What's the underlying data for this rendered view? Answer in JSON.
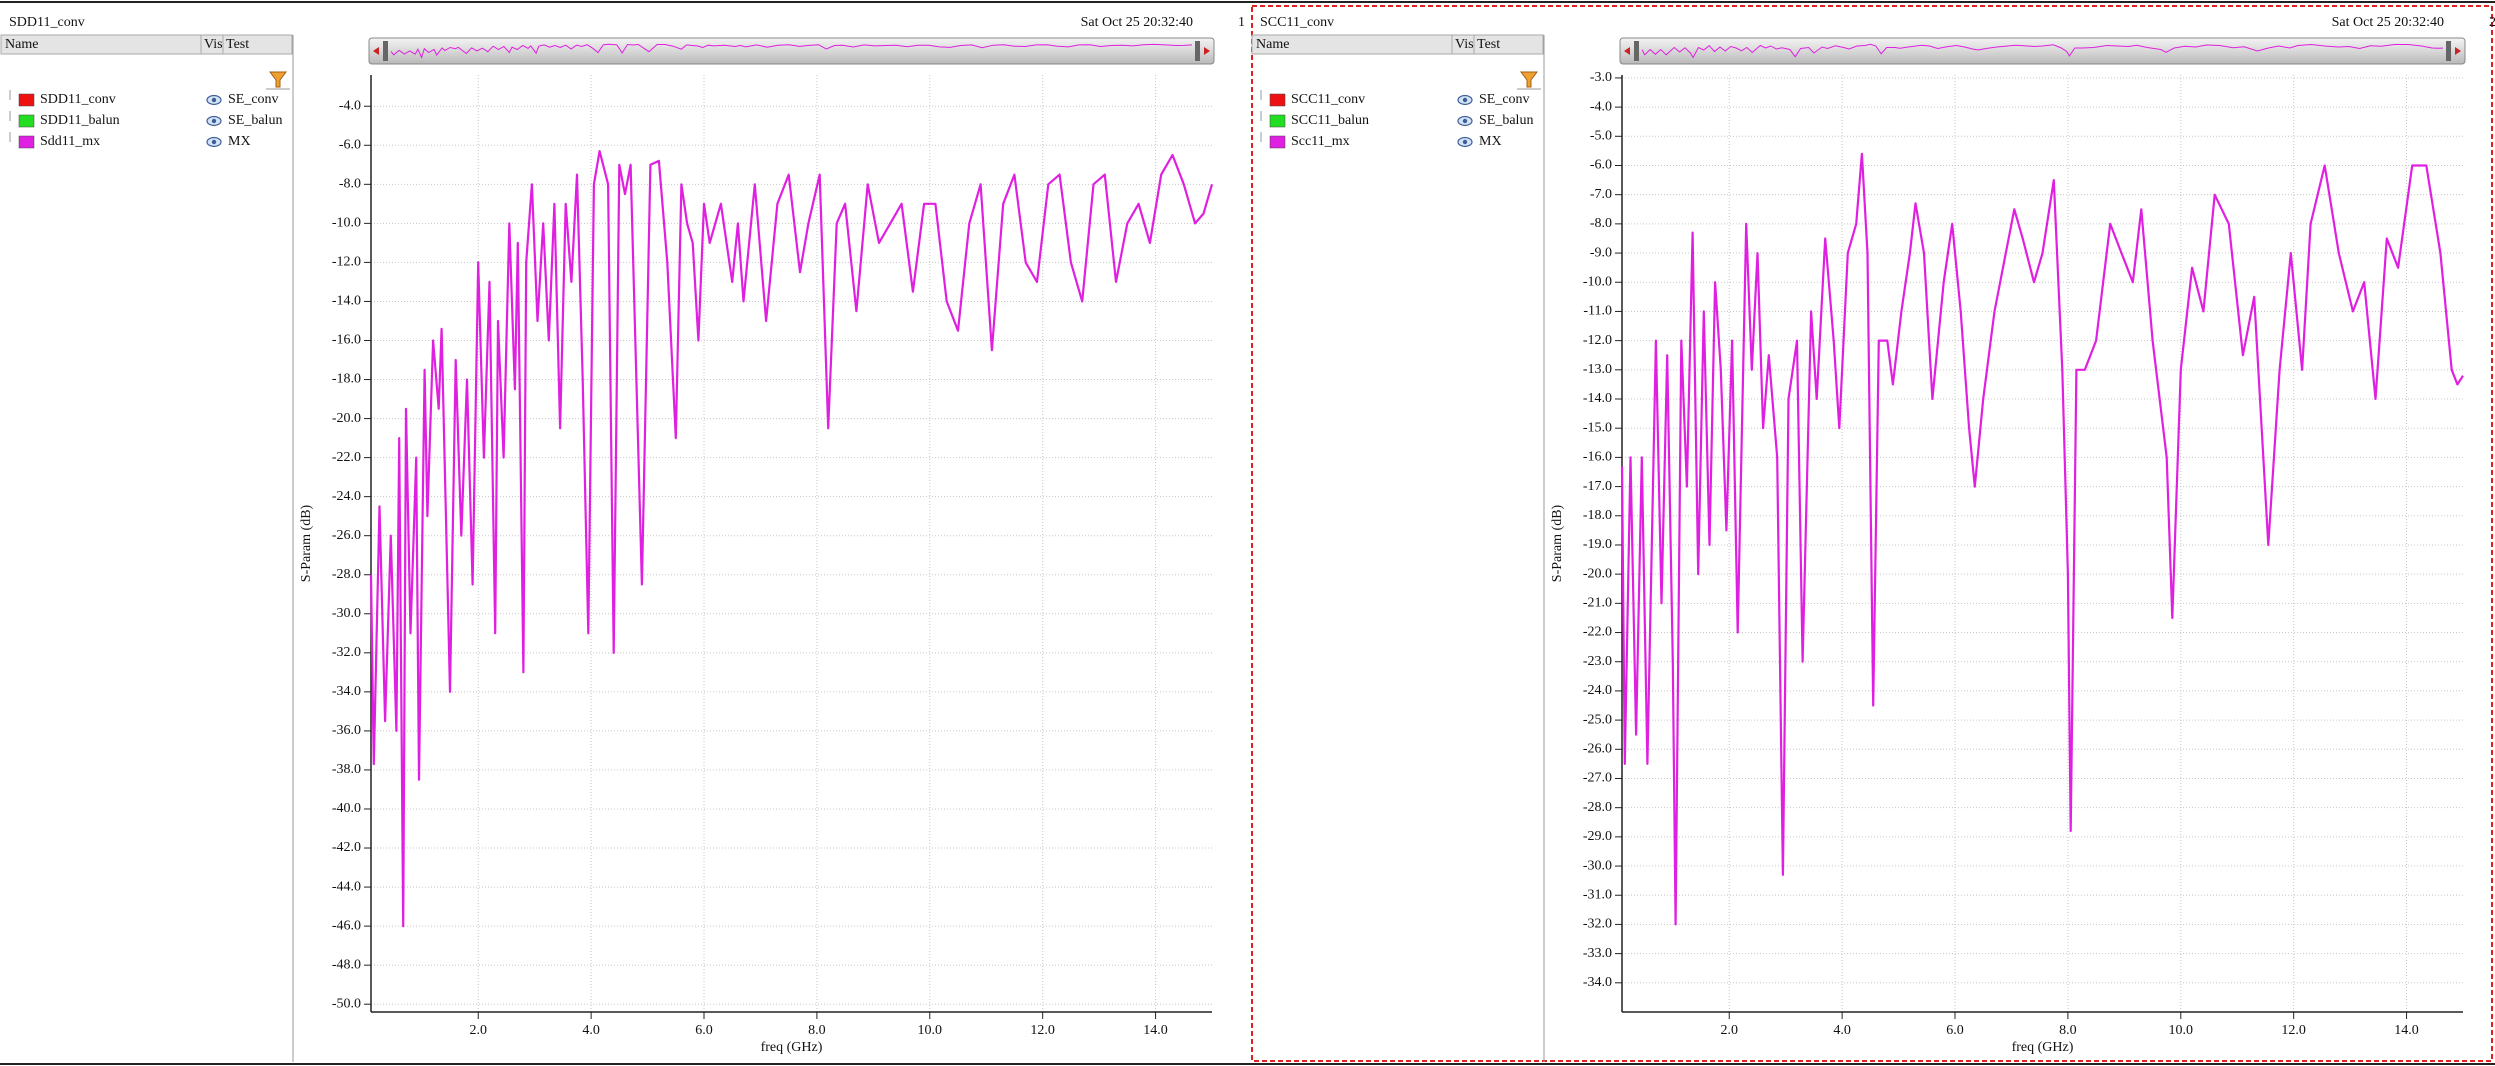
{
  "panels": [
    {
      "title": "SDD11_conv",
      "timestamp": "Sat Oct 25 20:32:40",
      "index": "1",
      "columns": [
        "Name",
        "Vis",
        "Test"
      ]
    },
    {
      "title": "SCC11_conv",
      "timestamp": "Sat Oct 25 20:32:40",
      "index": "2",
      "columns": [
        "Name",
        "Vis",
        "Test"
      ]
    }
  ],
  "chart_data": [
    {
      "type": "line",
      "xlabel": "freq (GHz)",
      "ylabel": "S-Param (dB)",
      "grid": true,
      "xlim": [
        0.1,
        15.0
      ],
      "ylim": [
        -50.4,
        -2.4
      ],
      "xticks": [
        {
          "value": 2,
          "label": "2.0"
        },
        {
          "value": 4,
          "label": "4.0"
        },
        {
          "value": 6,
          "label": "6.0"
        },
        {
          "value": 8,
          "label": "8.0"
        },
        {
          "value": 10,
          "label": "10.0"
        },
        {
          "value": 12,
          "label": "12.0"
        },
        {
          "value": 14,
          "label": "14.0"
        }
      ],
      "yticks": [
        {
          "value": -4,
          "label": "-4.0"
        },
        {
          "value": -6,
          "label": "-6.0"
        },
        {
          "value": -8,
          "label": "-8.0"
        },
        {
          "value": -10,
          "label": "-10.0"
        },
        {
          "value": -12,
          "label": "-12.0"
        },
        {
          "value": -14,
          "label": "-14.0"
        },
        {
          "value": -16,
          "label": "-16.0"
        },
        {
          "value": -18,
          "label": "-18.0"
        },
        {
          "value": -20,
          "label": "-20.0"
        },
        {
          "value": -22,
          "label": "-22.0"
        },
        {
          "value": -24,
          "label": "-24.0"
        },
        {
          "value": -26,
          "label": "-26.0"
        },
        {
          "value": -28,
          "label": "-28.0"
        },
        {
          "value": -30,
          "label": "-30.0"
        },
        {
          "value": -32,
          "label": "-32.0"
        },
        {
          "value": -34,
          "label": "-34.0"
        },
        {
          "value": -36,
          "label": "-36.0"
        },
        {
          "value": -38,
          "label": "-38.0"
        },
        {
          "value": -40,
          "label": "-40.0"
        },
        {
          "value": -42,
          "label": "-42.0"
        },
        {
          "value": -44,
          "label": "-44.0"
        },
        {
          "value": -46,
          "label": "-46.0"
        },
        {
          "value": -48,
          "label": "-48.0"
        },
        {
          "value": -50,
          "label": "-50.0"
        }
      ],
      "series": [
        {
          "name": "SDD11_conv",
          "color": "#ee1111",
          "test": "SE_conv"
        },
        {
          "name": "SDD11_balun",
          "color": "#22dd22",
          "test": "SE_balun"
        },
        {
          "name": "Sdd11_mx",
          "color": "#e020e0",
          "test": "MX",
          "x": [
            0.1,
            0.15,
            0.25,
            0.35,
            0.45,
            0.55,
            0.6,
            0.67,
            0.72,
            0.8,
            0.9,
            0.95,
            1.05,
            1.1,
            1.2,
            1.3,
            1.35,
            1.5,
            1.6,
            1.7,
            1.8,
            1.9,
            2.0,
            2.1,
            2.2,
            2.3,
            2.35,
            2.45,
            2.55,
            2.65,
            2.7,
            2.8,
            2.85,
            2.95,
            3.05,
            3.15,
            3.25,
            3.35,
            3.45,
            3.55,
            3.65,
            3.75,
            3.85,
            3.95,
            4.05,
            4.15,
            4.3,
            4.4,
            4.5,
            4.6,
            4.7,
            4.9,
            5.05,
            5.2,
            5.35,
            5.5,
            5.6,
            5.7,
            5.8,
            5.9,
            6.0,
            6.1,
            6.3,
            6.5,
            6.6,
            6.7,
            6.9,
            7.1,
            7.3,
            7.5,
            7.7,
            7.85,
            8.05,
            8.2,
            8.35,
            8.5,
            8.7,
            8.9,
            9.1,
            9.3,
            9.5,
            9.7,
            9.9,
            10.1,
            10.3,
            10.5,
            10.7,
            10.9,
            11.1,
            11.3,
            11.5,
            11.7,
            11.9,
            12.1,
            12.3,
            12.5,
            12.7,
            12.9,
            13.1,
            13.3,
            13.5,
            13.7,
            13.9,
            14.1,
            14.3,
            14.5,
            14.7,
            14.85,
            15.0
          ],
          "values": [
            -28,
            -37.7,
            -24.5,
            -35.5,
            -26,
            -36,
            -21,
            -46,
            -19.5,
            -31,
            -22,
            -38.5,
            -17.5,
            -25,
            -16,
            -19.5,
            -15.4,
            -34,
            -17,
            -26,
            -18,
            -28.5,
            -12,
            -22,
            -13,
            -31,
            -15,
            -22,
            -10,
            -18.5,
            -11,
            -33,
            -12,
            -8,
            -15,
            -10,
            -16,
            -9,
            -20.5,
            -9,
            -13,
            -7.5,
            -18,
            -31,
            -8,
            -6.3,
            -8,
            -32,
            -7,
            -8.5,
            -7,
            -28.5,
            -7,
            -6.8,
            -12,
            -21,
            -8,
            -10,
            -11,
            -16,
            -9,
            -11,
            -9,
            -13,
            -10,
            -14,
            -8,
            -15,
            -9,
            -7.5,
            -12.5,
            -10,
            -7.5,
            -20.5,
            -10,
            -9,
            -14.5,
            -8,
            -11,
            -10,
            -9,
            -13.5,
            -9,
            -9,
            -14,
            -15.5,
            -10,
            -8,
            -16.5,
            -9,
            -7.5,
            -12,
            -13,
            -8,
            -7.5,
            -12,
            -14,
            -8,
            -7.5,
            -13,
            -10,
            -9,
            -11,
            -7.5,
            -6.5,
            -8,
            -10,
            -9.5,
            -8
          ]
        }
      ]
    },
    {
      "type": "line",
      "xlabel": "freq (GHz)",
      "ylabel": "S-Param (dB)",
      "grid": true,
      "xlim": [
        0.1,
        15.0
      ],
      "ylim": [
        -35.0,
        -2.9
      ],
      "xticks": [
        {
          "value": 2,
          "label": "2.0"
        },
        {
          "value": 4,
          "label": "4.0"
        },
        {
          "value": 6,
          "label": "6.0"
        },
        {
          "value": 8,
          "label": "8.0"
        },
        {
          "value": 10,
          "label": "10.0"
        },
        {
          "value": 12,
          "label": "12.0"
        },
        {
          "value": 14,
          "label": "14.0"
        }
      ],
      "yticks": [
        {
          "value": -3,
          "label": "-3.0"
        },
        {
          "value": -4,
          "label": "-4.0"
        },
        {
          "value": -5,
          "label": "-5.0"
        },
        {
          "value": -6,
          "label": "-6.0"
        },
        {
          "value": -7,
          "label": "-7.0"
        },
        {
          "value": -8,
          "label": "-8.0"
        },
        {
          "value": -9,
          "label": "-9.0"
        },
        {
          "value": -10,
          "label": "-10.0"
        },
        {
          "value": -11,
          "label": "-11.0"
        },
        {
          "value": -12,
          "label": "-12.0"
        },
        {
          "value": -13,
          "label": "-13.0"
        },
        {
          "value": -14,
          "label": "-14.0"
        },
        {
          "value": -15,
          "label": "-15.0"
        },
        {
          "value": -16,
          "label": "-16.0"
        },
        {
          "value": -17,
          "label": "-17.0"
        },
        {
          "value": -18,
          "label": "-18.0"
        },
        {
          "value": -19,
          "label": "-19.0"
        },
        {
          "value": -20,
          "label": "-20.0"
        },
        {
          "value": -21,
          "label": "-21.0"
        },
        {
          "value": -22,
          "label": "-22.0"
        },
        {
          "value": -23,
          "label": "-23.0"
        },
        {
          "value": -24,
          "label": "-24.0"
        },
        {
          "value": -25,
          "label": "-25.0"
        },
        {
          "value": -26,
          "label": "-26.0"
        },
        {
          "value": -27,
          "label": "-27.0"
        },
        {
          "value": -28,
          "label": "-28.0"
        },
        {
          "value": -29,
          "label": "-29.0"
        },
        {
          "value": -30,
          "label": "-30.0"
        },
        {
          "value": -31,
          "label": "-31.0"
        },
        {
          "value": -32,
          "label": "-32.0"
        },
        {
          "value": -33,
          "label": "-33.0"
        },
        {
          "value": -34,
          "label": "-34.0"
        }
      ],
      "series": [
        {
          "name": "SCC11_conv",
          "color": "#ee1111",
          "test": "SE_conv"
        },
        {
          "name": "SCC11_balun",
          "color": "#22dd22",
          "test": "SE_balun"
        },
        {
          "name": "Scc11_mx",
          "color": "#e020e0",
          "test": "MX",
          "x": [
            0.1,
            0.15,
            0.25,
            0.35,
            0.45,
            0.55,
            0.7,
            0.8,
            0.9,
            1.0,
            1.05,
            1.15,
            1.25,
            1.35,
            1.45,
            1.55,
            1.65,
            1.75,
            1.85,
            1.95,
            2.05,
            2.15,
            2.3,
            2.4,
            2.5,
            2.6,
            2.7,
            2.85,
            2.95,
            3.05,
            3.2,
            3.3,
            3.45,
            3.55,
            3.7,
            3.85,
            3.95,
            4.1,
            4.25,
            4.35,
            4.45,
            4.55,
            4.65,
            4.8,
            4.9,
            5.05,
            5.2,
            5.3,
            5.45,
            5.6,
            5.8,
            5.95,
            6.1,
            6.25,
            6.35,
            6.5,
            6.7,
            6.9,
            7.05,
            7.2,
            7.4,
            7.55,
            7.75,
            7.9,
            8.0,
            8.05,
            8.15,
            8.3,
            8.5,
            8.75,
            8.95,
            9.15,
            9.3,
            9.5,
            9.75,
            9.85,
            10.0,
            10.2,
            10.4,
            10.6,
            10.85,
            11.1,
            11.3,
            11.55,
            11.75,
            11.95,
            12.15,
            12.3,
            12.55,
            12.8,
            13.05,
            13.25,
            13.45,
            13.65,
            13.85,
            14.1,
            14.35,
            14.6,
            14.8,
            14.9,
            15.0
          ],
          "values": [
            -16.3,
            -26.5,
            -16,
            -25.5,
            -16,
            -26.5,
            -12,
            -21,
            -12.5,
            -23,
            -32,
            -12,
            -17,
            -8.3,
            -20,
            -11,
            -19,
            -10,
            -13,
            -18.5,
            -12,
            -22,
            -8,
            -13,
            -9,
            -15,
            -12.5,
            -16,
            -30.3,
            -14,
            -12,
            -23,
            -11,
            -14,
            -8.5,
            -12,
            -15,
            -9,
            -8,
            -5.6,
            -9,
            -24.5,
            -12,
            -12,
            -13.5,
            -11,
            -9,
            -7.3,
            -9,
            -14,
            -10,
            -8,
            -11,
            -15,
            -17,
            -14,
            -11,
            -9,
            -7.5,
            -8.5,
            -10,
            -9,
            -6.5,
            -13,
            -20,
            -28.8,
            -13,
            -13,
            -12,
            -8,
            -9,
            -10,
            -7.5,
            -12,
            -16,
            -21.5,
            -13,
            -9.5,
            -11,
            -7,
            -8,
            -12.5,
            -10.5,
            -19,
            -13,
            -9,
            -13,
            -8,
            -6,
            -9,
            -11,
            -10,
            -14,
            -8.5,
            -9.5,
            -6,
            -6,
            -9,
            -13,
            -13.5,
            -13.2
          ]
        }
      ]
    }
  ]
}
